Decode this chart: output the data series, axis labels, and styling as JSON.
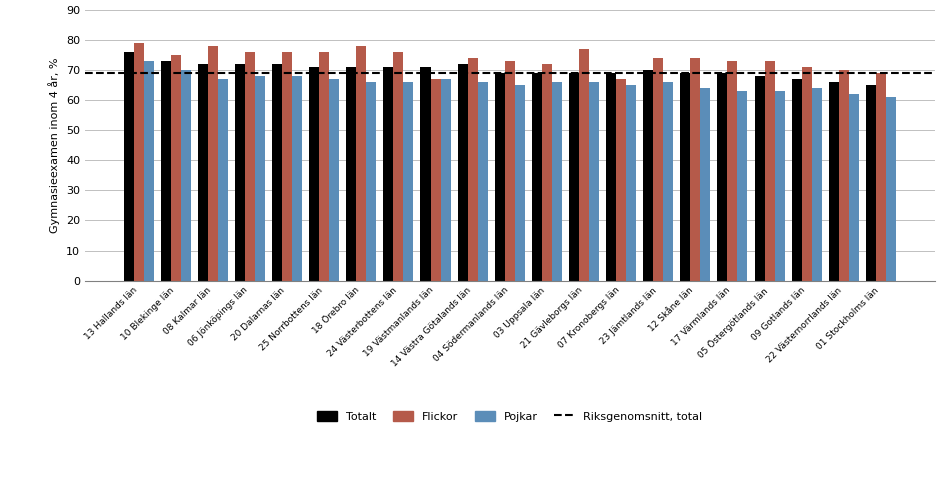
{
  "categories": [
    "13 Hallands län",
    "10 Blekinge län",
    "08 Kalmar län",
    "06 Jönköpings län",
    "20 Dalarnas län",
    "25 Norrbottens län",
    "18 Örebro län",
    "24 Västerbottens län",
    "19 Västmanlands län",
    "14 Västra Götalands län",
    "04 Södermanlands län",
    "03 Uppsala län",
    "21 Gävleborgs län",
    "07 Kronobergs län",
    "23 Jämtlands län",
    "12 Skåne län",
    "17 Värmlands län",
    "05 Östergötlands län",
    "09 Gotlands län",
    "22 Västernorrlands län",
    "01 Stockholms län"
  ],
  "totalt": [
    76,
    73,
    72,
    72,
    72,
    71,
    71,
    71,
    71,
    72,
    69,
    69,
    69,
    69,
    70,
    69,
    69,
    68,
    67,
    66,
    65
  ],
  "flickor": [
    79,
    75,
    78,
    76,
    76,
    76,
    78,
    76,
    67,
    74,
    73,
    72,
    77,
    67,
    74,
    74,
    73,
    73,
    71,
    70,
    69
  ],
  "pojkar": [
    73,
    70,
    67,
    68,
    68,
    67,
    66,
    66,
    67,
    66,
    65,
    66,
    66,
    65,
    66,
    64,
    63,
    63,
    64,
    62,
    61
  ],
  "riksgenomsnitt": 69,
  "ylabel": "Gymnasieexamen inom 4 år, %",
  "ylim": [
    0,
    90
  ],
  "yticks": [
    0,
    10,
    20,
    30,
    40,
    50,
    60,
    70,
    80,
    90
  ],
  "bar_color_totalt": "#000000",
  "bar_color_flickor": "#b55a4a",
  "bar_color_pojkar": "#5b8db8",
  "riksgenomsnitt_color": "#000000",
  "legend_labels": [
    "Totalt",
    "Flickor",
    "Pojkar",
    "Riksgenomsnitt, total"
  ],
  "bar_width": 0.27,
  "figure_bg": "#ffffff",
  "axes_bg": "#ffffff",
  "grid_color": "#c0c0c0"
}
